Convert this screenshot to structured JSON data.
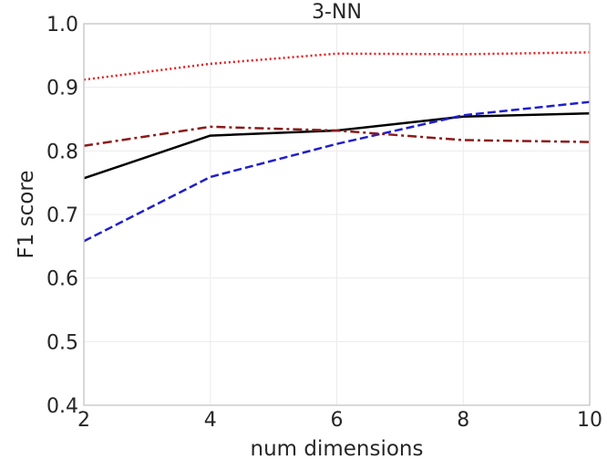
{
  "chart_data": {
    "type": "line",
    "title": "3-NN",
    "xlabel": "num dimensions",
    "ylabel": "F1 score",
    "x": [
      2,
      4,
      6,
      8,
      10
    ],
    "xlim": [
      2,
      10
    ],
    "ylim": [
      0.4,
      1.0
    ],
    "xticks": [
      2,
      4,
      6,
      8,
      10
    ],
    "yticks": [
      0.4,
      0.5,
      0.6,
      0.7,
      0.8,
      0.9,
      1.0
    ],
    "xtick_labels": [
      "2",
      "4",
      "6",
      "8",
      "10"
    ],
    "ytick_labels": [
      "0.4",
      "0.5",
      "0.6",
      "0.7",
      "0.8",
      "0.9",
      "1.0"
    ],
    "grid": true,
    "legend": null,
    "series": [
      {
        "values": [
          0.912,
          0.937,
          0.953,
          0.952,
          0.955
        ],
        "color": "#e31a1c",
        "style": "dotted"
      },
      {
        "values": [
          0.757,
          0.824,
          0.832,
          0.854,
          0.859
        ],
        "color": "#000000",
        "style": "solid"
      },
      {
        "values": [
          0.658,
          0.759,
          0.811,
          0.856,
          0.877
        ],
        "color": "#1f1fcc",
        "style": "dashed"
      },
      {
        "values": [
          0.808,
          0.838,
          0.832,
          0.817,
          0.814
        ],
        "color": "#8b1a1a",
        "style": "dashdot"
      }
    ]
  }
}
